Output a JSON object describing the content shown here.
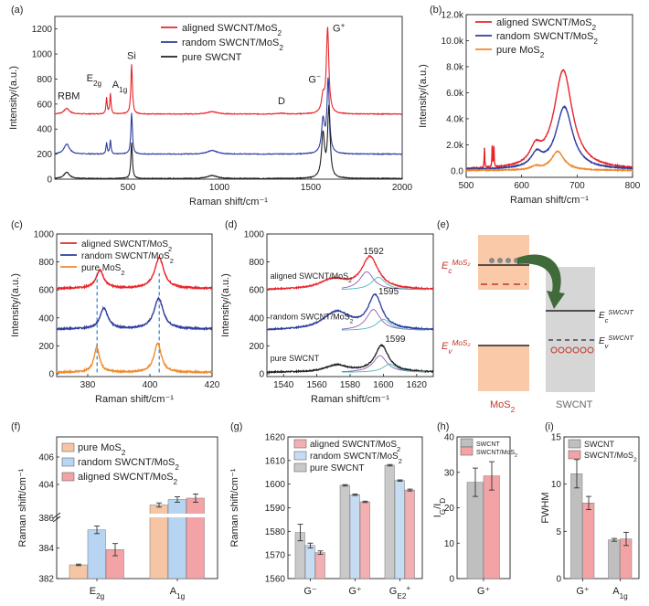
{
  "panels": [
    {
      "label": "(a)",
      "type": "line",
      "xlabel": "Raman shift/cm⁻¹",
      "ylabel": "Intensity/(a.u.)",
      "xlim": [
        100,
        2000
      ],
      "ylim": [
        0,
        1300
      ],
      "xticks": [
        "500",
        "1000",
        "1500",
        "2000"
      ],
      "yticks": [
        "0",
        "200",
        "400",
        "600",
        "800",
        "1000",
        "1200"
      ],
      "legend": {
        "position": "top-center",
        "entries": [
          "aligned SWCNT/MoS₂",
          "random SWCNT/MoS₂",
          "pure SWCNT"
        ]
      },
      "annotations": [
        "RBM",
        "E2g",
        "A1g",
        "Si",
        "D",
        "G⁻",
        "G⁺"
      ],
      "series": [
        {
          "name": "aligned SWCNT/MoS₂",
          "color": "#e8242a",
          "baseline": 520,
          "peaks": [
            {
              "x": 165,
              "h": 45,
              "w": 18
            },
            {
              "x": 383,
              "h": 130,
              "w": 4
            },
            {
              "x": 404,
              "h": 160,
              "w": 4
            },
            {
              "x": 520,
              "h": 400,
              "w": 5
            },
            {
              "x": 960,
              "h": 20,
              "w": 30
            },
            {
              "x": 1340,
              "h": 6,
              "w": 20
            },
            {
              "x": 1567,
              "h": 130,
              "w": 10
            },
            {
              "x": 1592,
              "h": 680,
              "w": 8
            }
          ]
        },
        {
          "name": "random SWCNT/MoS₂",
          "color": "#2e3d9e",
          "baseline": 200,
          "peaks": [
            {
              "x": 165,
              "h": 80,
              "w": 18
            },
            {
              "x": 383,
              "h": 90,
              "w": 4
            },
            {
              "x": 404,
              "h": 110,
              "w": 4
            },
            {
              "x": 520,
              "h": 330,
              "w": 5
            },
            {
              "x": 960,
              "h": 30,
              "w": 30
            },
            {
              "x": 1567,
              "h": 260,
              "w": 10
            },
            {
              "x": 1595,
              "h": 580,
              "w": 8
            }
          ]
        },
        {
          "name": "pure SWCNT",
          "color": "#222222",
          "baseline": 5,
          "peaks": [
            {
              "x": 165,
              "h": 50,
              "w": 18
            },
            {
              "x": 520,
              "h": 290,
              "w": 5
            },
            {
              "x": 960,
              "h": 25,
              "w": 30
            },
            {
              "x": 1567,
              "h": 350,
              "w": 10
            },
            {
              "x": 1599,
              "h": 560,
              "w": 8
            }
          ]
        }
      ]
    },
    {
      "label": "(b)",
      "type": "line",
      "xlabel": "Raman shift/cm⁻¹",
      "ylabel": "Intensity/(a.u.)",
      "xlim": [
        500,
        800
      ],
      "ylim": [
        -500,
        12000
      ],
      "xticks": [
        "500",
        "600",
        "700",
        "800"
      ],
      "yticks": [
        "0.0",
        "2.0k",
        "4.0k",
        "6.0k",
        "8.0k",
        "10.0k",
        "12.0k"
      ],
      "legend": {
        "position": "top-right",
        "entries": [
          "aligned SWCNT/MoS₂",
          "random SWCNT/MoS₂",
          "pure MoS₂"
        ]
      },
      "series": [
        {
          "name": "aligned SWCNT/MoS₂",
          "color": "#e8242a",
          "baseline": 80,
          "peaks": [
            {
              "x": 675,
              "h": 7600,
              "w": 20
            },
            {
              "x": 625,
              "h": 1200,
              "w": 12
            },
            {
              "x": 533,
              "h": 1500,
              "w": 0.6
            },
            {
              "x": 547,
              "h": 1700,
              "w": 0.6
            },
            {
              "x": 550,
              "h": 1600,
              "w": 0.6
            }
          ]
        },
        {
          "name": "random SWCNT/MoS₂",
          "color": "#2e3d9e",
          "baseline": 80,
          "peaks": [
            {
              "x": 677,
              "h": 4800,
              "w": 18
            },
            {
              "x": 627,
              "h": 1000,
              "w": 12
            }
          ]
        },
        {
          "name": "pure MoS₂",
          "color": "#f08a2c",
          "baseline": 30,
          "peaks": [
            {
              "x": 665,
              "h": 1450,
              "w": 14
            },
            {
              "x": 625,
              "h": 250,
              "w": 10
            }
          ]
        }
      ]
    },
    {
      "label": "(c)",
      "type": "line",
      "xlabel": "Raman shift/cm⁻¹",
      "ylabel": "Intensity/(a.u.)",
      "xlim": [
        370,
        420
      ],
      "ylim": [
        -20,
        1000
      ],
      "xticks": [
        "380",
        "400",
        "420"
      ],
      "yticks": [
        "0",
        "200",
        "400",
        "600",
        "800",
        "1000"
      ],
      "legend": {
        "position": "top-left",
        "entries": [
          "aligned SWCNT/MoS₂",
          "random SWCNT/MoS₂",
          "pure MoS₂"
        ]
      },
      "series": [
        {
          "name": "aligned SWCNT/MoS₂",
          "color": "#e8242a",
          "baseline": 610,
          "peaks": [
            {
              "x": 383.9,
              "h": 130,
              "w": 1.5
            },
            {
              "x": 403,
              "h": 220,
              "w": 1.8
            }
          ]
        },
        {
          "name": "random SWCNT/MoS₂",
          "color": "#2e3d9e",
          "baseline": 320,
          "peaks": [
            {
              "x": 385.2,
              "h": 150,
              "w": 1.5
            },
            {
              "x": 402.8,
              "h": 220,
              "w": 1.8
            }
          ]
        },
        {
          "name": "pure MoS₂",
          "color": "#f08a2c",
          "baseline": 10,
          "peaks": [
            {
              "x": 382.9,
              "h": 180,
              "w": 1.1
            },
            {
              "x": 402.5,
              "h": 210,
              "w": 1.4
            }
          ]
        }
      ],
      "dashed_x": [
        383,
        403
      ]
    },
    {
      "label": "(d)",
      "type": "line",
      "xlabel": "Raman shift/cm⁻¹",
      "ylabel": "Intensity/(a.u.)",
      "xlim": [
        1530,
        1630
      ],
      "ylim": [
        -20,
        1000
      ],
      "xticks": [
        "1540",
        "1560",
        "1580",
        "1600",
        "1620"
      ],
      "yticks": [
        "0",
        "200",
        "400",
        "600",
        "800",
        "1000"
      ],
      "annotations": [
        "1592",
        "1595",
        "1599"
      ],
      "curve_labels": [
        "aligned SWCNT/MoS₂",
        "random SWCNT/MoS₂",
        "pure SWCNT"
      ],
      "series": [
        {
          "name": "aligned SWCNT/MoS₂",
          "color": "#e8242a",
          "baseline": 600,
          "peaks": [
            {
              "x": 1592,
              "h": 230,
              "w": 6
            },
            {
              "x": 1570,
              "h": 70,
              "w": 10
            }
          ]
        },
        {
          "name": "random SWCNT/MoS₂",
          "color": "#2e3d9e",
          "baseline": 310,
          "peaks": [
            {
              "x": 1595,
              "h": 240,
              "w": 5
            },
            {
              "x": 1572,
              "h": 130,
              "w": 10
            }
          ]
        },
        {
          "name": "pure SWCNT",
          "color": "#222222",
          "baseline": 10,
          "peaks": [
            {
              "x": 1599,
              "h": 190,
              "w": 5
            },
            {
              "x": 1572,
              "h": 50,
              "w": 8
            }
          ]
        }
      ]
    },
    {
      "label": "(e)",
      "type": "diagram",
      "texts": {
        "ec_mos2": "E",
        "ec_mos2_sub": "c",
        "ec_mos2_sup": "MoS₂",
        "ev_mos2": "E",
        "ev_mos2_sub": "v",
        "ev_mos2_sup": "MoS₂",
        "ec_cnt": "E",
        "ec_cnt_sub": "c",
        "ec_cnt_sup": "SWCNT",
        "ev_cnt": "E",
        "ev_cnt_sub": "v",
        "ev_cnt_sup": "SWCNT",
        "mos2": "MoS₂",
        "swcnt": "SWCNT"
      },
      "colors": {
        "mos2_band": "#f9c9a8",
        "cnt_band": "#d6d6d6",
        "level_red": "#c0392b",
        "arrow": "#3f6b3a"
      }
    },
    {
      "label": "(f)",
      "type": "bar",
      "ylabel": "Raman shift/cm⁻¹",
      "categories": [
        "E2g",
        "A1g"
      ],
      "yticks_bottom": [
        "382",
        "384",
        "386"
      ],
      "yticks_top": [
        "404",
        "406"
      ],
      "legend": {
        "position": "top-left",
        "entries": [
          "pure MoS₂",
          "random SWCNT/MoS₂",
          "aligned SWCNT/MoS₂"
        ]
      },
      "series": [
        {
          "name": "pure MoS₂",
          "color": "#f6c6a4",
          "values": [
            382.9,
            402.5
          ],
          "err": [
            0.05,
            0.15
          ]
        },
        {
          "name": "random SWCNT/MoS₂",
          "color": "#b7d4f2",
          "values": [
            385.2,
            402.9
          ],
          "err": [
            0.25,
            0.2
          ]
        },
        {
          "name": "aligned SWCNT/MoS₂",
          "color": "#f3a3a6",
          "values": [
            383.9,
            403.0
          ],
          "err": [
            0.4,
            0.3
          ]
        }
      ]
    },
    {
      "label": "(g)",
      "type": "bar",
      "ylabel": "Raman shift/cm⁻¹",
      "categories": [
        "G⁻",
        "G⁺",
        "G_E2⁺"
      ],
      "ylim": [
        1560,
        1620
      ],
      "yticks": [
        "1560",
        "1570",
        "1580",
        "1590",
        "1600",
        "1610",
        "1620"
      ],
      "legend": {
        "position": "top-left",
        "entries": [
          "aligned SWCNT/MoS₂",
          "random SWCNT/MoS₂",
          "pure SWCNT"
        ]
      },
      "series": [
        {
          "name": "pure SWCNT",
          "color": "#c9c9c9",
          "values": [
            1579.5,
            1599.5,
            1608.0
          ],
          "err": [
            3.5,
            0.3,
            0.3
          ]
        },
        {
          "name": "random SWCNT/MoS₂",
          "color": "#c6dcf3",
          "values": [
            1574.0,
            1595.5,
            1601.5
          ],
          "err": [
            1.0,
            0.3,
            0.3
          ]
        },
        {
          "name": "aligned SWCNT/MoS₂",
          "color": "#f3b0b2",
          "values": [
            1571.0,
            1592.5,
            1597.5
          ],
          "err": [
            0.7,
            0.3,
            0.4
          ]
        }
      ]
    },
    {
      "label": "(h)",
      "type": "bar",
      "ylabel": "I_G/I_D",
      "categories": [
        "G⁺"
      ],
      "ylim": [
        0,
        40
      ],
      "yticks": [
        "0",
        "10",
        "20",
        "30",
        "40"
      ],
      "legend": {
        "position": "top",
        "entries": [
          "SWCNT",
          "SWCNT/MoS₂"
        ]
      },
      "series": [
        {
          "name": "SWCNT",
          "color": "#bfbfbf",
          "values": [
            27.2
          ],
          "err": [
            4.0
          ]
        },
        {
          "name": "SWCNT/MoS₂",
          "color": "#f3a3a6",
          "values": [
            29.0
          ],
          "err": [
            4.0
          ]
        }
      ]
    },
    {
      "label": "(i)",
      "type": "bar",
      "ylabel": "FWHM",
      "categories": [
        "G⁺",
        "A1g"
      ],
      "ylim": [
        0,
        15
      ],
      "yticks": [
        "0",
        "5",
        "10",
        "15"
      ],
      "legend": {
        "position": "top-right",
        "entries": [
          "SWCNT",
          "SWCNT/MoS₂"
        ]
      },
      "series": [
        {
          "name": "SWCNT",
          "color": "#bfbfbf",
          "values": [
            11.1,
            4.1
          ],
          "err": [
            1.5,
            0.15
          ]
        },
        {
          "name": "SWCNT/MoS₂",
          "color": "#f3a3a6",
          "values": [
            8.0,
            4.2
          ],
          "err": [
            0.7,
            0.7
          ]
        }
      ]
    }
  ]
}
